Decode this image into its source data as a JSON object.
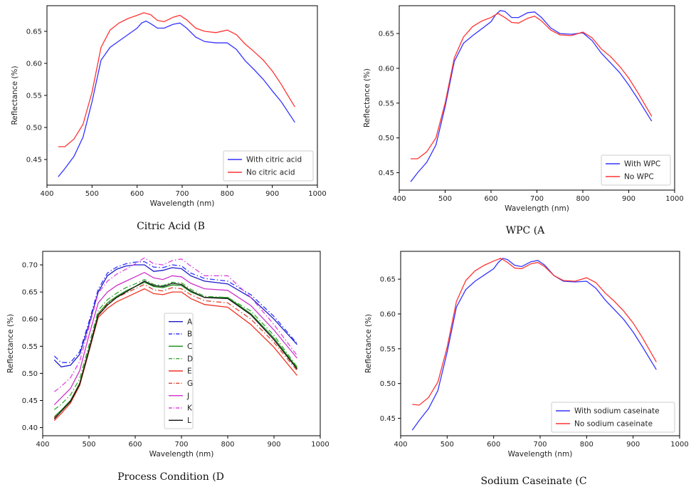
{
  "chart_data": [
    {
      "type": "line",
      "caption": "Citric Acid (B",
      "xlabel": "Wavelength (nm)",
      "ylabel": "Reflectance (%)",
      "xlim": [
        400,
        1000
      ],
      "ylim": [
        0.41,
        0.69
      ],
      "xticks": [
        "400",
        "500",
        "600",
        "700",
        "800",
        "900",
        "1000"
      ],
      "yticks": [
        "0.45",
        "0.50",
        "0.55",
        "0.60",
        "0.65"
      ],
      "legend_position": "lower-right",
      "series": [
        {
          "name": "With citric acid",
          "color": "#3333ff",
          "dash": "solid",
          "x": [
            425,
            440,
            460,
            480,
            500,
            520,
            540,
            560,
            580,
            600,
            610,
            620,
            630,
            645,
            660,
            680,
            695,
            710,
            730,
            750,
            775,
            800,
            820,
            840,
            860,
            880,
            900,
            920,
            950
          ],
          "y": [
            0.423,
            0.436,
            0.455,
            0.485,
            0.54,
            0.605,
            0.625,
            0.635,
            0.645,
            0.655,
            0.663,
            0.666,
            0.662,
            0.655,
            0.655,
            0.661,
            0.663,
            0.655,
            0.641,
            0.634,
            0.632,
            0.632,
            0.622,
            0.604,
            0.59,
            0.575,
            0.557,
            0.54,
            0.508
          ]
        },
        {
          "name": "No citric acid",
          "color": "#ff3333",
          "dash": "solid",
          "x": [
            425,
            440,
            460,
            480,
            500,
            520,
            540,
            560,
            580,
            600,
            615,
            630,
            645,
            660,
            680,
            695,
            710,
            730,
            750,
            775,
            800,
            820,
            840,
            860,
            880,
            900,
            920,
            950
          ],
          "y": [
            0.47,
            0.47,
            0.482,
            0.505,
            0.555,
            0.625,
            0.652,
            0.663,
            0.67,
            0.675,
            0.679,
            0.676,
            0.667,
            0.665,
            0.672,
            0.675,
            0.668,
            0.655,
            0.65,
            0.648,
            0.652,
            0.645,
            0.63,
            0.618,
            0.605,
            0.588,
            0.567,
            0.532
          ]
        }
      ]
    },
    {
      "type": "line",
      "caption": "WPC (A",
      "xlabel": "Wavelength (nm)",
      "ylabel": "Reflectance (%)",
      "xlim": [
        400,
        1000
      ],
      "ylim": [
        0.425,
        0.69
      ],
      "xticks": [
        "400",
        "500",
        "600",
        "700",
        "800",
        "900",
        "1000"
      ],
      "yticks": [
        "0.45",
        "0.50",
        "0.55",
        "0.60",
        "0.65"
      ],
      "legend_position": "lower-right",
      "series": [
        {
          "name": "With WPC",
          "color": "#3333ff",
          "dash": "solid",
          "x": [
            425,
            440,
            460,
            480,
            500,
            520,
            540,
            560,
            580,
            600,
            610,
            620,
            630,
            645,
            660,
            680,
            695,
            710,
            730,
            750,
            775,
            800,
            820,
            840,
            860,
            880,
            900,
            920,
            950
          ],
          "y": [
            0.437,
            0.45,
            0.465,
            0.49,
            0.545,
            0.61,
            0.636,
            0.647,
            0.657,
            0.667,
            0.677,
            0.683,
            0.682,
            0.673,
            0.673,
            0.68,
            0.681,
            0.673,
            0.658,
            0.65,
            0.649,
            0.651,
            0.64,
            0.622,
            0.608,
            0.594,
            0.576,
            0.556,
            0.524
          ]
        },
        {
          "name": "No WPC",
          "color": "#ff3333",
          "dash": "solid",
          "x": [
            425,
            440,
            460,
            480,
            500,
            520,
            540,
            560,
            580,
            600,
            615,
            630,
            645,
            660,
            680,
            695,
            710,
            730,
            750,
            775,
            800,
            820,
            840,
            860,
            880,
            900,
            920,
            950
          ],
          "y": [
            0.47,
            0.47,
            0.48,
            0.5,
            0.55,
            0.615,
            0.645,
            0.66,
            0.668,
            0.673,
            0.679,
            0.673,
            0.666,
            0.665,
            0.672,
            0.675,
            0.668,
            0.655,
            0.648,
            0.647,
            0.652,
            0.644,
            0.628,
            0.617,
            0.603,
            0.586,
            0.565,
            0.531
          ]
        }
      ]
    },
    {
      "type": "line",
      "caption": "Process Condition (D",
      "xlabel": "Wavelength (nm)",
      "ylabel": "Reflectance (%)",
      "xlim": [
        400,
        1000
      ],
      "ylim": [
        0.385,
        0.725
      ],
      "xticks": [
        "400",
        "500",
        "600",
        "700",
        "800",
        "900",
        "1000"
      ],
      "yticks": [
        "0.40",
        "0.45",
        "0.50",
        "0.55",
        "0.60",
        "0.65",
        "0.70"
      ],
      "legend_position": "center",
      "series": [
        {
          "name": "A",
          "color": "#1a1acc",
          "dash": "solid",
          "x": [
            425,
            440,
            460,
            480,
            500,
            520,
            540,
            560,
            580,
            600,
            620,
            640,
            660,
            680,
            700,
            720,
            750,
            800,
            850,
            900,
            950
          ],
          "y": [
            0.525,
            0.512,
            0.515,
            0.535,
            0.59,
            0.65,
            0.68,
            0.692,
            0.698,
            0.7,
            0.7,
            0.688,
            0.69,
            0.695,
            0.693,
            0.68,
            0.67,
            0.665,
            0.64,
            0.6,
            0.553
          ]
        },
        {
          "name": "B",
          "color": "#3333ff",
          "dash": "dashdot",
          "x": [
            425,
            440,
            460,
            480,
            500,
            520,
            540,
            560,
            580,
            600,
            620,
            640,
            660,
            680,
            700,
            720,
            750,
            800,
            850,
            900,
            950
          ],
          "y": [
            0.532,
            0.52,
            0.52,
            0.54,
            0.595,
            0.655,
            0.685,
            0.696,
            0.702,
            0.705,
            0.706,
            0.696,
            0.695,
            0.7,
            0.698,
            0.685,
            0.675,
            0.67,
            0.645,
            0.605,
            0.555
          ]
        },
        {
          "name": "C",
          "color": "#1a8c1a",
          "dash": "solid",
          "x": [
            425,
            440,
            460,
            480,
            500,
            520,
            540,
            560,
            580,
            600,
            620,
            640,
            660,
            680,
            700,
            720,
            750,
            800,
            850,
            900,
            950
          ],
          "y": [
            0.42,
            0.432,
            0.45,
            0.482,
            0.545,
            0.61,
            0.63,
            0.642,
            0.652,
            0.66,
            0.668,
            0.66,
            0.658,
            0.663,
            0.662,
            0.65,
            0.64,
            0.64,
            0.61,
            0.565,
            0.51
          ]
        },
        {
          "name": "D",
          "color": "#33aa33",
          "dash": "dashdot",
          "x": [
            425,
            440,
            460,
            480,
            500,
            520,
            540,
            560,
            580,
            600,
            620,
            640,
            660,
            680,
            700,
            720,
            750,
            800,
            850,
            900,
            950
          ],
          "y": [
            0.433,
            0.443,
            0.46,
            0.49,
            0.552,
            0.616,
            0.636,
            0.648,
            0.658,
            0.665,
            0.673,
            0.664,
            0.662,
            0.668,
            0.667,
            0.655,
            0.642,
            0.64,
            0.615,
            0.57,
            0.512
          ]
        },
        {
          "name": "E",
          "color": "#ee3322",
          "dash": "solid",
          "x": [
            425,
            440,
            460,
            480,
            500,
            520,
            540,
            560,
            580,
            600,
            620,
            640,
            660,
            680,
            700,
            720,
            750,
            800,
            850,
            900,
            950
          ],
          "y": [
            0.413,
            0.426,
            0.445,
            0.478,
            0.54,
            0.603,
            0.62,
            0.632,
            0.64,
            0.648,
            0.656,
            0.647,
            0.645,
            0.65,
            0.65,
            0.638,
            0.627,
            0.622,
            0.59,
            0.548,
            0.496
          ]
        },
        {
          "name": "G",
          "color": "#dd4433",
          "dash": "dashdot",
          "x": [
            425,
            440,
            460,
            480,
            500,
            520,
            540,
            560,
            580,
            600,
            620,
            640,
            660,
            680,
            700,
            720,
            750,
            800,
            850,
            900,
            950
          ],
          "y": [
            0.418,
            0.43,
            0.448,
            0.482,
            0.544,
            0.608,
            0.628,
            0.64,
            0.648,
            0.656,
            0.664,
            0.654,
            0.652,
            0.658,
            0.656,
            0.645,
            0.634,
            0.63,
            0.6,
            0.557,
            0.505
          ]
        },
        {
          "name": "J",
          "color": "#cc33cc",
          "dash": "solid",
          "x": [
            425,
            440,
            460,
            480,
            500,
            520,
            540,
            560,
            580,
            600,
            620,
            640,
            660,
            680,
            700,
            720,
            750,
            800,
            850,
            900,
            950
          ],
          "y": [
            0.442,
            0.455,
            0.472,
            0.505,
            0.57,
            0.63,
            0.65,
            0.662,
            0.67,
            0.678,
            0.686,
            0.676,
            0.673,
            0.68,
            0.678,
            0.666,
            0.656,
            0.653,
            0.625,
            0.58,
            0.528
          ]
        },
        {
          "name": "K",
          "color": "#dd44dd",
          "dash": "dashdot",
          "x": [
            425,
            440,
            460,
            480,
            500,
            520,
            540,
            560,
            580,
            600,
            620,
            640,
            660,
            680,
            700,
            720,
            750,
            800,
            850,
            900,
            950
          ],
          "y": [
            0.466,
            0.476,
            0.492,
            0.522,
            0.585,
            0.648,
            0.67,
            0.683,
            0.692,
            0.702,
            0.713,
            0.702,
            0.7,
            0.708,
            0.711,
            0.698,
            0.68,
            0.68,
            0.64,
            0.59,
            0.533
          ]
        },
        {
          "name": "L",
          "color": "#111111",
          "dash": "solid",
          "x": [
            425,
            440,
            460,
            480,
            500,
            520,
            540,
            560,
            580,
            600,
            620,
            640,
            660,
            680,
            700,
            720,
            750,
            800,
            850,
            900,
            950
          ],
          "y": [
            0.416,
            0.43,
            0.448,
            0.48,
            0.542,
            0.607,
            0.626,
            0.64,
            0.65,
            0.66,
            0.67,
            0.662,
            0.66,
            0.666,
            0.664,
            0.652,
            0.64,
            0.638,
            0.608,
            0.562,
            0.508
          ]
        }
      ]
    },
    {
      "type": "line",
      "caption": "Sodium Caseinate (C",
      "xlabel": "Wavelength (nm)",
      "ylabel": "Reflectance (%)",
      "xlim": [
        400,
        1000
      ],
      "ylim": [
        0.425,
        0.69
      ],
      "xticks": [
        "400",
        "500",
        "600",
        "700",
        "800",
        "900",
        "1000"
      ],
      "yticks": [
        "0.45",
        "0.50",
        "0.55",
        "0.60",
        "0.65"
      ],
      "legend_position": "lower-right",
      "series": [
        {
          "name": "With sodium caseinate",
          "color": "#3333ff",
          "dash": "solid",
          "x": [
            425,
            440,
            460,
            480,
            500,
            520,
            540,
            560,
            580,
            600,
            610,
            620,
            630,
            645,
            660,
            680,
            695,
            710,
            730,
            750,
            775,
            800,
            820,
            840,
            860,
            880,
            900,
            920,
            950
          ],
          "y": [
            0.433,
            0.447,
            0.464,
            0.49,
            0.545,
            0.61,
            0.635,
            0.647,
            0.656,
            0.665,
            0.674,
            0.68,
            0.678,
            0.67,
            0.668,
            0.675,
            0.677,
            0.67,
            0.655,
            0.647,
            0.646,
            0.647,
            0.637,
            0.62,
            0.606,
            0.592,
            0.574,
            0.553,
            0.52
          ]
        },
        {
          "name": "No sodium caseinate",
          "color": "#ff3333",
          "dash": "solid",
          "x": [
            425,
            440,
            460,
            480,
            500,
            520,
            540,
            560,
            580,
            600,
            615,
            630,
            645,
            660,
            680,
            695,
            710,
            730,
            750,
            775,
            800,
            820,
            840,
            860,
            880,
            900,
            920,
            950
          ],
          "y": [
            0.47,
            0.469,
            0.48,
            0.502,
            0.552,
            0.618,
            0.648,
            0.662,
            0.67,
            0.676,
            0.68,
            0.674,
            0.666,
            0.665,
            0.672,
            0.674,
            0.668,
            0.655,
            0.648,
            0.647,
            0.652,
            0.645,
            0.63,
            0.618,
            0.604,
            0.587,
            0.566,
            0.531
          ]
        }
      ]
    }
  ]
}
